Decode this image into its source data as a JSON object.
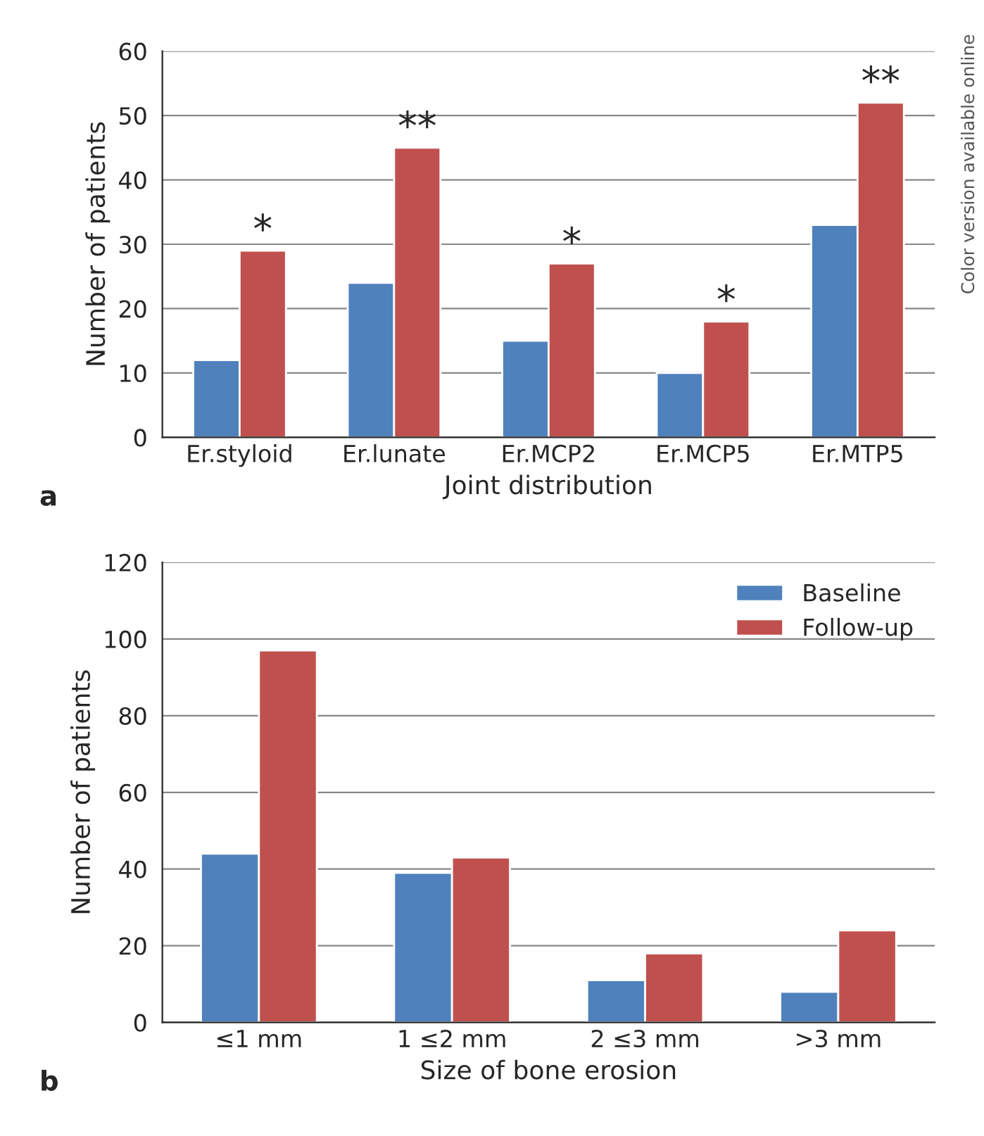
{
  "chart_data": [
    {
      "type": "bar",
      "xlabel": "Joint distribution",
      "ylabel": "Number of patients",
      "categories": [
        "Er.styloid",
        "Er.lunate",
        "Er.MCP2",
        "Er.MCP5",
        "Er.MTP5"
      ],
      "series": [
        {
          "color": "#4f81bd",
          "values": [
            12,
            24,
            15,
            10,
            33
          ]
        },
        {
          "color": "#c0504d",
          "values": [
            29,
            45,
            27,
            18,
            52
          ]
        }
      ],
      "ylim": [
        0,
        60
      ],
      "yticks": [
        0,
        10,
        20,
        30,
        40,
        50,
        60
      ],
      "grid": "y",
      "legend": false,
      "annotations": [
        {
          "text": "*",
          "x": "Er.styloid",
          "y": 29
        },
        {
          "text": "**",
          "x": "Er.lunate",
          "y": 45
        },
        {
          "text": "*",
          "x": "Er.MCP2",
          "y": 27
        },
        {
          "text": "*",
          "x": "Er.MCP5",
          "y": 18
        },
        {
          "text": "**",
          "x": "Er.MTP5",
          "y": 52
        },
        "a",
        "Color version available online"
      ]
    },
    {
      "type": "bar",
      "xlabel": "Size of bone erosion",
      "ylabel": "Number of patients",
      "categories": [
        "≤1 mm",
        "1 ≤2 mm",
        "2 ≤3 mm",
        ">3 mm"
      ],
      "series": [
        {
          "name": "Baseline",
          "color": "#4f81bd",
          "values": [
            44,
            39,
            11,
            8
          ]
        },
        {
          "name": "Follow-up",
          "color": "#c0504d",
          "values": [
            97,
            43,
            18,
            24
          ]
        }
      ],
      "ylim": [
        0,
        120
      ],
      "yticks": [
        0,
        20,
        40,
        60,
        80,
        100,
        120
      ],
      "grid": "y",
      "legend": "top right",
      "annotations": [
        "b"
      ]
    }
  ]
}
